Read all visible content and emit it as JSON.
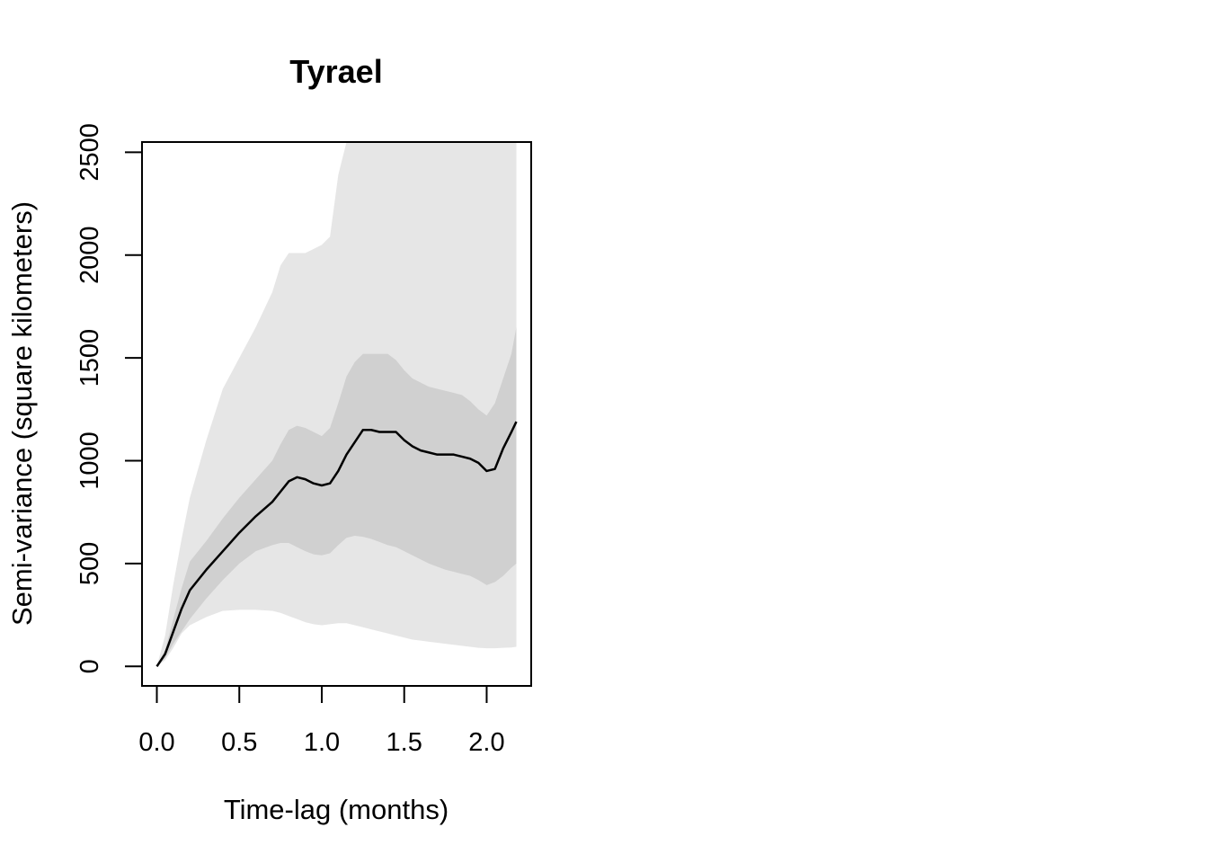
{
  "chart_data": {
    "type": "area",
    "title": "Tyrael",
    "xlabel": "Time-lag (months)",
    "ylabel": "Semi-variance (square kilometers)",
    "xlim": [
      -0.09,
      2.27
    ],
    "ylim": [
      -95,
      2550
    ],
    "x_ticks": [
      "0.0",
      "0.5",
      "1.0",
      "1.5",
      "2.0"
    ],
    "y_ticks": [
      "0",
      "500",
      "1000",
      "1500",
      "2000",
      "2500"
    ],
    "grid": false,
    "colors": {
      "outer_band": "#e6e6e6",
      "inner_band": "#d0d0d0",
      "line": "#000000",
      "axis": "#000000"
    },
    "x": [
      0.0,
      0.05,
      0.1,
      0.15,
      0.2,
      0.3,
      0.4,
      0.5,
      0.6,
      0.7,
      0.75,
      0.8,
      0.85,
      0.9,
      0.95,
      1.0,
      1.05,
      1.1,
      1.15,
      1.2,
      1.25,
      1.3,
      1.35,
      1.4,
      1.45,
      1.5,
      1.55,
      1.6,
      1.65,
      1.7,
      1.75,
      1.8,
      1.85,
      1.9,
      1.95,
      2.0,
      2.05,
      2.1,
      2.15,
      2.18
    ],
    "series": [
      {
        "role": "semi-variance",
        "values": [
          0,
          60,
          170,
          280,
          370,
          470,
          560,
          650,
          730,
          800,
          850,
          900,
          920,
          910,
          890,
          880,
          890,
          950,
          1030,
          1090,
          1150,
          1150,
          1140,
          1140,
          1140,
          1100,
          1070,
          1050,
          1040,
          1030,
          1030,
          1030,
          1020,
          1010,
          990,
          950,
          960,
          1060,
          1140,
          1190
        ]
      },
      {
        "role": "inner-lower",
        "values": [
          0,
          40,
          110,
          170,
          230,
          330,
          420,
          500,
          560,
          590,
          600,
          600,
          580,
          560,
          545,
          540,
          550,
          590,
          625,
          635,
          630,
          620,
          605,
          590,
          580,
          560,
          540,
          520,
          500,
          485,
          470,
          460,
          450,
          440,
          420,
          395,
          410,
          440,
          480,
          500
        ]
      },
      {
        "role": "inner-upper",
        "values": [
          0,
          80,
          230,
          380,
          510,
          610,
          720,
          820,
          910,
          1000,
          1080,
          1150,
          1170,
          1160,
          1140,
          1120,
          1160,
          1280,
          1410,
          1480,
          1520,
          1520,
          1520,
          1520,
          1490,
          1440,
          1400,
          1380,
          1360,
          1350,
          1340,
          1330,
          1320,
          1290,
          1250,
          1220,
          1280,
          1400,
          1520,
          1650
        ]
      },
      {
        "role": "outer-lower",
        "values": [
          0,
          30,
          90,
          160,
          200,
          240,
          270,
          275,
          275,
          270,
          260,
          245,
          230,
          215,
          205,
          200,
          205,
          210,
          210,
          200,
          190,
          180,
          170,
          160,
          150,
          140,
          130,
          125,
          120,
          115,
          110,
          105,
          100,
          95,
          90,
          88,
          88,
          90,
          92,
          95
        ]
      },
      {
        "role": "outer-upper",
        "values": [
          0,
          150,
          400,
          620,
          820,
          1100,
          1350,
          1500,
          1650,
          1820,
          1950,
          2010,
          2010,
          2010,
          2030,
          2050,
          2090,
          2390,
          2550,
          2550,
          2550,
          2550,
          2550,
          2550,
          2550,
          2550,
          2550,
          2550,
          2550,
          2550,
          2550,
          2550,
          2550,
          2550,
          2550,
          2550,
          2550,
          2550,
          2550,
          2550
        ]
      }
    ]
  }
}
